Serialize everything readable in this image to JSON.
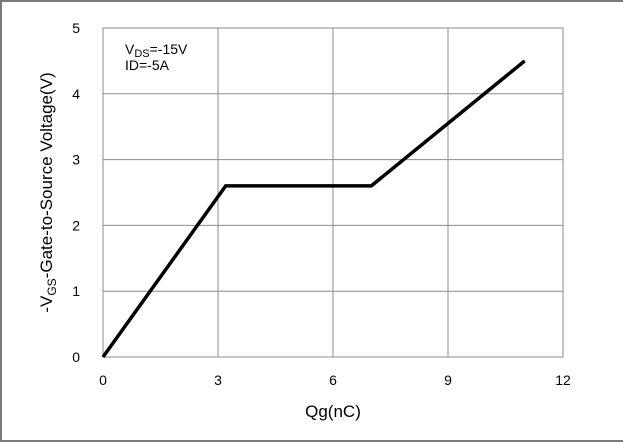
{
  "chart_data": {
    "type": "line",
    "xlabel": "Qg(nC)",
    "ylabel_prefix": "-V",
    "ylabel_sub": "GS",
    "ylabel_suffix": "-Gate-to-Source Voltage(V)",
    "xlim": [
      0,
      12
    ],
    "ylim": [
      0,
      5
    ],
    "x_ticks": [
      0,
      3,
      6,
      9,
      12
    ],
    "y_ticks": [
      0,
      1,
      2,
      3,
      4,
      5
    ],
    "grid": true,
    "annotations": [
      {
        "prefix": "V",
        "sub": "DS",
        "suffix": "=-15V"
      },
      {
        "prefix": "ID=-5A",
        "sub": "",
        "suffix": ""
      }
    ],
    "series": [
      {
        "x": [
          0,
          3.2,
          7.0,
          11.0
        ],
        "y": [
          0,
          2.6,
          2.6,
          4.5
        ]
      }
    ]
  }
}
